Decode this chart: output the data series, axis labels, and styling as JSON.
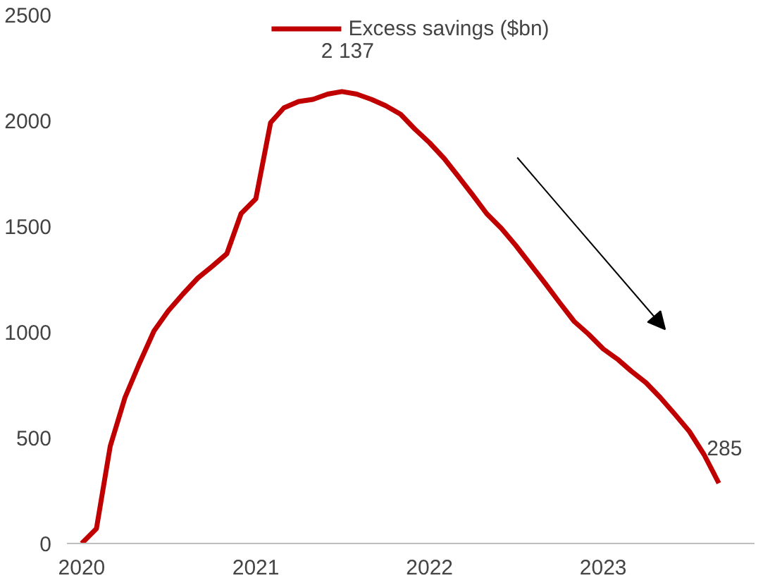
{
  "chart_data": {
    "type": "line",
    "x": [
      "2020-01",
      "2020-02",
      "2020-03",
      "2020-04",
      "2020-05",
      "2020-06",
      "2020-07",
      "2020-08",
      "2020-09",
      "2020-10",
      "2020-11",
      "2020-12",
      "2021-01",
      "2021-02",
      "2021-03",
      "2021-04",
      "2021-05",
      "2021-06",
      "2021-07",
      "2021-08",
      "2021-09",
      "2021-10",
      "2021-11",
      "2021-12",
      "2022-01",
      "2022-02",
      "2022-03",
      "2022-04",
      "2022-05",
      "2022-06",
      "2022-07",
      "2022-08",
      "2022-09",
      "2022-10",
      "2022-11",
      "2022-12",
      "2023-01",
      "2023-02",
      "2023-03",
      "2023-04",
      "2023-05",
      "2023-06",
      "2023-07",
      "2023-08",
      "2023-09"
    ],
    "series": [
      {
        "name": "Excess savings ($bn)",
        "color": "#c00000",
        "values": [
          0,
          70,
          460,
          690,
          850,
          1005,
          1100,
          1180,
          1255,
          1310,
          1370,
          1560,
          1630,
          1990,
          2060,
          2090,
          2100,
          2125,
          2137,
          2125,
          2100,
          2070,
          2030,
          1960,
          1895,
          1820,
          1740,
          1650,
          1560,
          1490,
          1410,
          1320,
          1230,
          1140,
          1050,
          990,
          920,
          870,
          815,
          760,
          690,
          610,
          530,
          420,
          285
        ]
      }
    ],
    "xlim": [
      "2019-12-01",
      "2023-11-15"
    ],
    "xticks": [
      {
        "value": "2020-01",
        "label": "2020"
      },
      {
        "value": "2021-01",
        "label": "2021"
      },
      {
        "value": "2022-01",
        "label": "2022"
      },
      {
        "value": "2023-01",
        "label": "2023"
      }
    ],
    "ylim": [
      0,
      2500
    ],
    "yticks": [
      0,
      500,
      1000,
      1500,
      2000,
      2500
    ],
    "annotations": [
      {
        "text": "2 137",
        "x": "2021-07",
        "y": 2137
      },
      {
        "text": "285",
        "x": "2023-09",
        "y": 285
      }
    ],
    "legend": "top",
    "grid": false,
    "marker": "none",
    "line_style": "solid"
  }
}
